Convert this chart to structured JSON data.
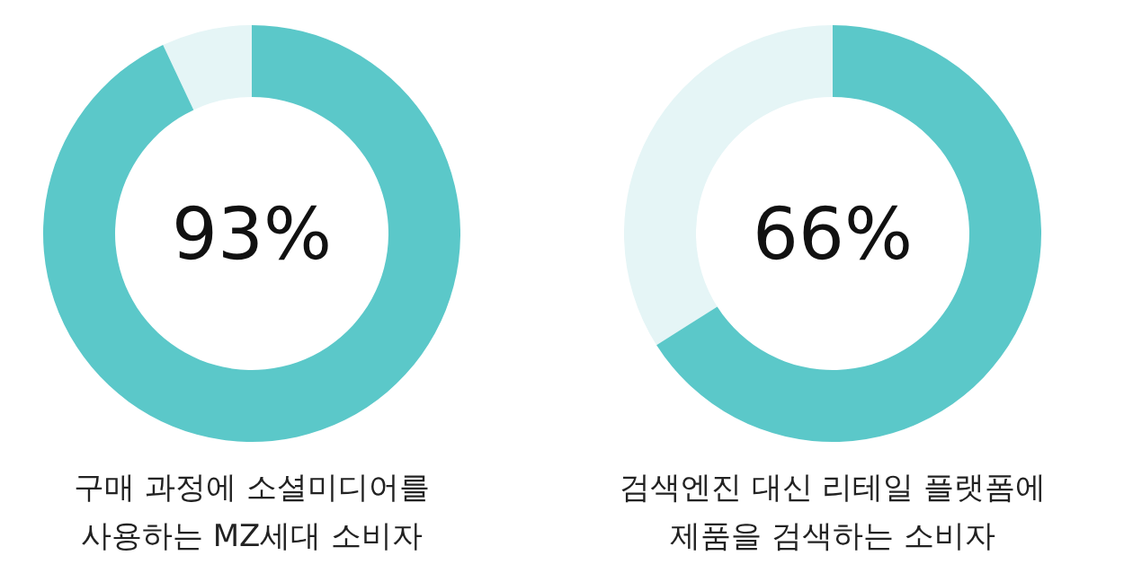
{
  "chart_data": [
    {
      "type": "donut",
      "title": "구매 과정에 소셜미디어를 사용하는 MZ세대 소비자",
      "categories": [
        null,
        null
      ],
      "values": [
        93,
        7
      ],
      "colors": [
        "#5bc8c9",
        "#e5f5f6"
      ],
      "value_labels": [
        "93%",
        null
      ]
    },
    {
      "type": "donut",
      "title": "검색엔진 대신 리테일 플랫폼에 제품을 검색하는 소비자",
      "categories": [
        null,
        null
      ],
      "values": [
        66,
        34
      ],
      "colors": [
        "#5bc8c9",
        "#e5f5f6"
      ],
      "value_labels": [
        "66%",
        null
      ]
    }
  ]
}
